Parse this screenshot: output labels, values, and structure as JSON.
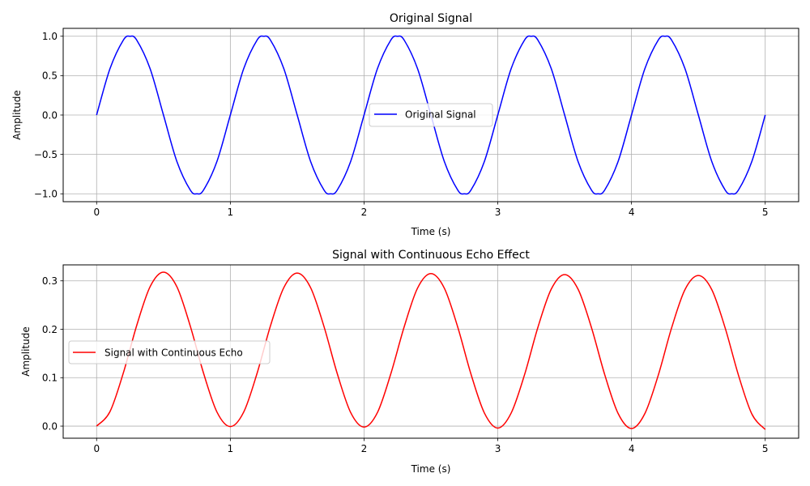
{
  "chart_data": [
    {
      "type": "line",
      "title": "Original Signal",
      "xlabel": "Time (s)",
      "ylabel": "Amplitude",
      "xlim": [
        -0.25,
        5.25
      ],
      "ylim": [
        -1.1,
        1.1
      ],
      "xticks": [
        0,
        1,
        2,
        3,
        4,
        5
      ],
      "xtick_labels": [
        "0",
        "1",
        "2",
        "3",
        "4",
        "5"
      ],
      "yticks": [
        -1.0,
        -0.5,
        0.0,
        0.5,
        1.0
      ],
      "ytick_labels": [
        "−1.0",
        "−0.5",
        "0.0",
        "0.5",
        "1.0"
      ],
      "grid": true,
      "legend_placement": "center",
      "series": [
        {
          "name": "Original Signal",
          "color": "#0000ff",
          "x": [
            0,
            0.1,
            0.2,
            0.25,
            0.3,
            0.4,
            0.5,
            0.6,
            0.7,
            0.75,
            0.8,
            0.9,
            1.0,
            1.1,
            1.2,
            1.25,
            1.3,
            1.4,
            1.5,
            1.6,
            1.7,
            1.75,
            1.8,
            1.9,
            2.0,
            2.1,
            2.2,
            2.25,
            2.3,
            2.4,
            2.5,
            2.6,
            2.7,
            2.75,
            2.8,
            2.9,
            3.0,
            3.1,
            3.2,
            3.25,
            3.3,
            3.4,
            3.5,
            3.6,
            3.7,
            3.75,
            3.8,
            3.9,
            4.0,
            4.1,
            4.2,
            4.25,
            4.3,
            4.4,
            4.5,
            4.6,
            4.7,
            4.75,
            4.8,
            4.9,
            5.0
          ],
          "y": [
            0.0,
            0.588,
            0.951,
            1.0,
            0.951,
            0.588,
            0.0,
            -0.588,
            -0.951,
            -1.0,
            -0.951,
            -0.588,
            0.0,
            0.588,
            0.951,
            1.0,
            0.951,
            0.588,
            0.0,
            -0.588,
            -0.951,
            -1.0,
            -0.951,
            -0.588,
            0.0,
            0.588,
            0.951,
            1.0,
            0.951,
            0.588,
            0.0,
            -0.588,
            -0.951,
            -1.0,
            -0.951,
            -0.588,
            0.0,
            0.588,
            0.951,
            1.0,
            0.951,
            0.588,
            0.0,
            -0.588,
            -0.951,
            -1.0,
            -0.951,
            -0.588,
            0.0,
            0.588,
            0.951,
            1.0,
            0.951,
            0.588,
            0.0,
            -0.588,
            -0.951,
            -1.0,
            -0.951,
            -0.588,
            0.0
          ]
        }
      ]
    },
    {
      "type": "line",
      "title": "Signal with Continuous Echo Effect",
      "xlabel": "Time (s)",
      "ylabel": "Amplitude",
      "xlim": [
        -0.25,
        5.25
      ],
      "ylim": [
        -0.025,
        0.333
      ],
      "xticks": [
        0,
        1,
        2,
        3,
        4,
        5
      ],
      "xtick_labels": [
        "0",
        "1",
        "2",
        "3",
        "4",
        "5"
      ],
      "yticks": [
        0.0,
        0.1,
        0.2,
        0.3
      ],
      "ytick_labels": [
        "0.0",
        "0.1",
        "0.2",
        "0.3"
      ],
      "grid": true,
      "legend_placement": "center-left",
      "series": [
        {
          "name": "Signal with Continuous Echo",
          "color": "#ff0000",
          "x": [
            0,
            0.1,
            0.2,
            0.3,
            0.4,
            0.5,
            0.6,
            0.7,
            0.8,
            0.9,
            1.0,
            1.1,
            1.2,
            1.3,
            1.4,
            1.5,
            1.6,
            1.7,
            1.8,
            1.9,
            2.0,
            2.1,
            2.2,
            2.3,
            2.4,
            2.5,
            2.6,
            2.7,
            2.8,
            2.9,
            3.0,
            3.1,
            3.2,
            3.3,
            3.4,
            3.5,
            3.6,
            3.7,
            3.8,
            3.9,
            4.0,
            4.1,
            4.2,
            4.3,
            4.4,
            4.5,
            4.6,
            4.7,
            4.8,
            4.9,
            5.0
          ],
          "y": [
            0.0,
            0.03,
            0.11,
            0.208,
            0.288,
            0.318,
            0.288,
            0.207,
            0.109,
            0.029,
            -0.001,
            0.029,
            0.109,
            0.207,
            0.286,
            0.316,
            0.286,
            0.206,
            0.108,
            0.028,
            -0.002,
            0.028,
            0.108,
            0.205,
            0.285,
            0.315,
            0.285,
            0.205,
            0.107,
            0.027,
            -0.004,
            0.027,
            0.106,
            0.204,
            0.283,
            0.313,
            0.283,
            0.204,
            0.106,
            0.026,
            -0.005,
            0.026,
            0.105,
            0.203,
            0.282,
            0.311,
            0.282,
            0.203,
            0.105,
            0.025,
            -0.007
          ]
        }
      ]
    }
  ]
}
